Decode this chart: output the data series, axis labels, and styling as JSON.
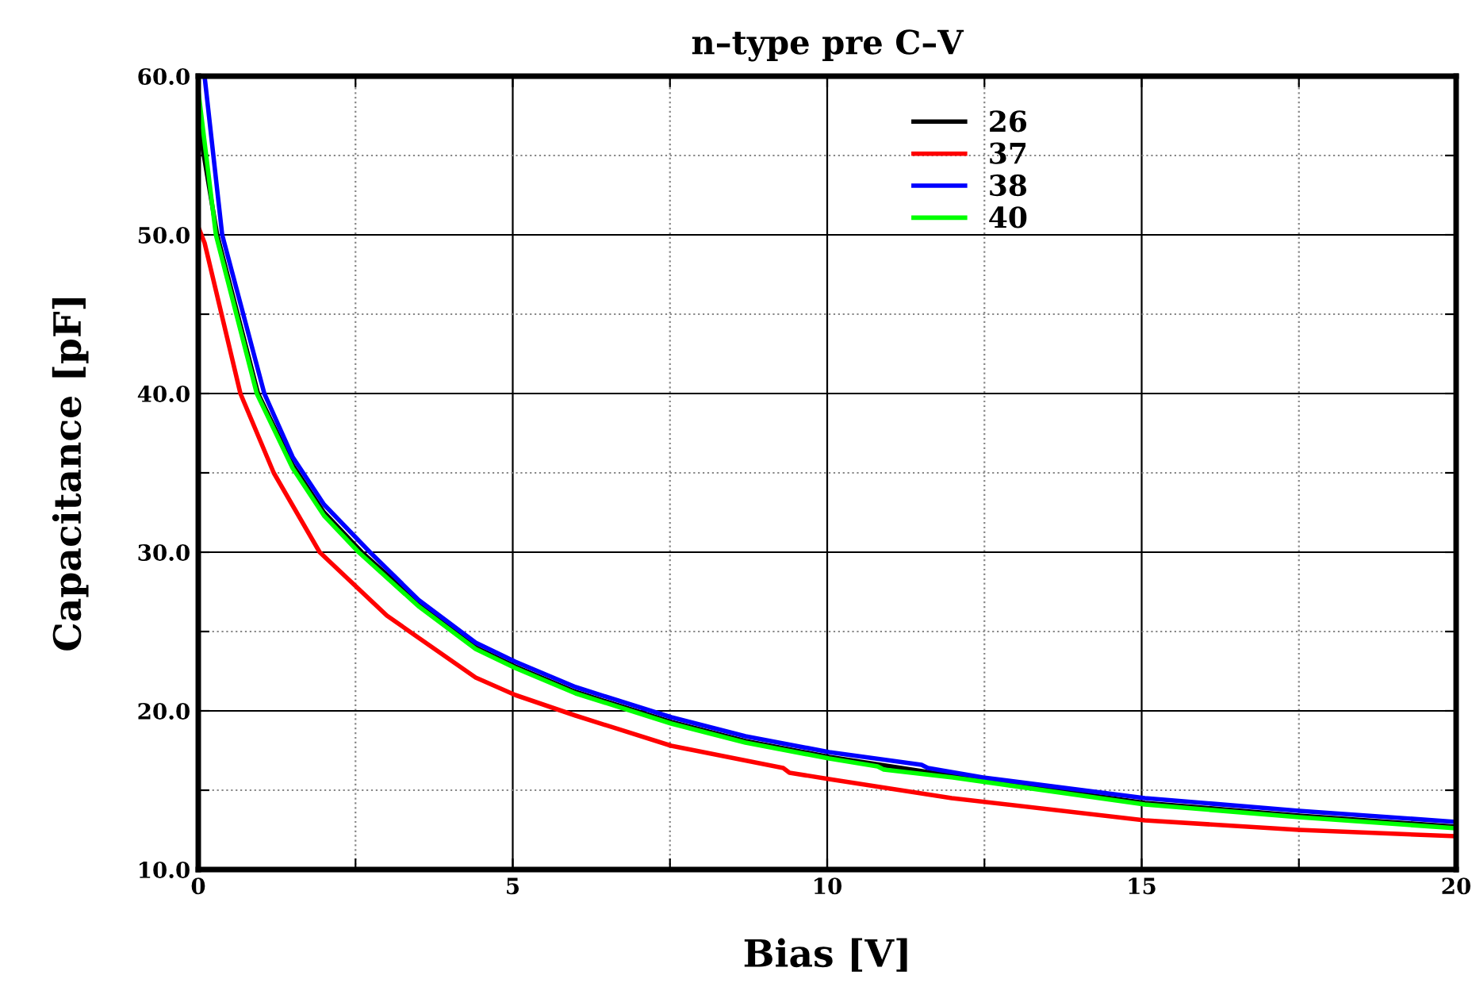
{
  "chart_data": {
    "type": "line",
    "title": "n–type pre C–V",
    "xlabel": "Bias [V]",
    "ylabel": "Capacitance [pF]",
    "xlim": [
      0,
      20
    ],
    "ylim": [
      10,
      60
    ],
    "xticks": [
      0,
      {
        "value": 2.5,
        "label": null
      },
      5,
      {
        "value": 7.5,
        "label": null
      },
      10,
      {
        "value": 12.5,
        "label": null
      },
      15,
      {
        "value": 17.5,
        "label": null
      },
      20
    ],
    "yticks": [
      {
        "value": 10,
        "label": "10.0"
      },
      {
        "value": 15,
        "label": null
      },
      {
        "value": 20,
        "label": "20.0"
      },
      {
        "value": 25,
        "label": null
      },
      {
        "value": 30,
        "label": "30.0"
      },
      {
        "value": 35,
        "label": null
      },
      {
        "value": 40,
        "label": "40.0"
      },
      {
        "value": 45,
        "label": null
      },
      {
        "value": 50,
        "label": "50.0"
      },
      {
        "value": 55,
        "label": null
      },
      {
        "value": 60,
        "label": "60.0"
      }
    ],
    "grid": true,
    "legend": "top right",
    "marker": "none",
    "line_style": "solid",
    "series": [
      {
        "name": "26",
        "color": "#000000",
        "x": [
          0,
          0.3,
          0.95,
          1.5,
          2.0,
          2.6,
          3.5,
          4.41,
          5.04,
          6,
          7.52,
          8.7,
          10.03,
          12,
          15.05,
          17.5,
          20
        ],
        "values": [
          57.1,
          50,
          40,
          35.5,
          32.5,
          30,
          26.8,
          24.0,
          22.8,
          21.2,
          19.3,
          18.1,
          17.1,
          15.9,
          14.2,
          13.4,
          12.7
        ]
      },
      {
        "name": "37",
        "color": "#ff0000",
        "x": [
          0,
          0.1,
          0.67,
          1.2,
          1.93,
          3,
          4.41,
          5.04,
          6,
          7.52,
          9.3,
          9.4,
          10.03,
          11.98,
          15.05,
          17.5,
          20
        ],
        "values": [
          50.5,
          49.5,
          40,
          35,
          30,
          26,
          22.1,
          21.0,
          19.7,
          17.8,
          16.4,
          16.1,
          15.7,
          14.5,
          13.1,
          12.5,
          12.1
        ]
      },
      {
        "name": "38",
        "color": "#0000ff",
        "x": [
          0.1,
          0.38,
          1.05,
          1.5,
          2.0,
          2.73,
          3.5,
          4.41,
          5.04,
          6,
          7.52,
          8.7,
          10.03,
          11.5,
          11.6,
          12.48,
          15.05,
          17.5,
          20
        ],
        "values": [
          60,
          50,
          40,
          36,
          33,
          30,
          27,
          24.3,
          23.1,
          21.5,
          19.6,
          18.4,
          17.4,
          16.6,
          16.4,
          15.8,
          14.5,
          13.7,
          13.0
        ]
      },
      {
        "name": "40",
        "color": "#00ff00",
        "x": [
          0,
          0.28,
          0.93,
          1.5,
          2.0,
          2.55,
          3.5,
          4.41,
          5.04,
          6,
          7.52,
          8.7,
          10.03,
          10.8,
          10.9,
          12,
          15.05,
          17.5,
          20
        ],
        "values": [
          59.1,
          50,
          40,
          35.3,
          32.3,
          30,
          26.6,
          23.9,
          22.7,
          21.1,
          19.2,
          18.0,
          17.0,
          16.5,
          16.3,
          15.8,
          14.1,
          13.3,
          12.6
        ]
      }
    ]
  }
}
